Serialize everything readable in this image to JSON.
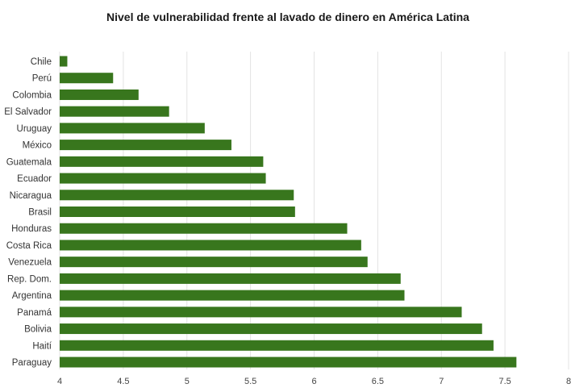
{
  "chart_data": {
    "type": "bar",
    "orientation": "horizontal",
    "title": "Nivel de vulnerabilidad frente al lavado de dinero en América Latina",
    "xlabel": "",
    "ylabel": "",
    "categories": [
      "Chile",
      "Perú",
      "Colombia",
      "El Salvador",
      "Uruguay",
      "México",
      "Guatemala",
      "Ecuador",
      "Nicaragua",
      "Brasil",
      "Honduras",
      "Costa Rica",
      "Venezuela",
      "Rep. Dom.",
      "Argentina",
      "Panamá",
      "Bolivia",
      "Haití",
      "Paraguay"
    ],
    "values": [
      4.06,
      4.42,
      4.62,
      4.86,
      5.14,
      5.35,
      5.6,
      5.62,
      5.84,
      5.85,
      6.26,
      6.37,
      6.42,
      6.68,
      6.71,
      7.16,
      7.32,
      7.41,
      7.59
    ],
    "xlim": [
      4,
      8
    ],
    "xticks": [
      "4",
      "4.5",
      "5",
      "5.5",
      "6",
      "6.5",
      "7",
      "7.5",
      "8"
    ],
    "grid": true,
    "bar_color": "#38761d"
  }
}
